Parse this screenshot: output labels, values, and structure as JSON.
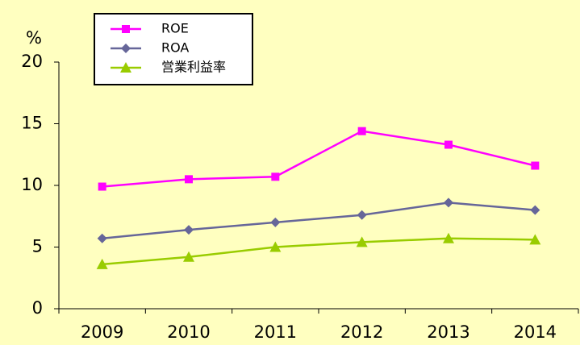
{
  "chart_data": {
    "type": "line",
    "y_label": "%",
    "categories": [
      "2009",
      "2010",
      "2011",
      "2012",
      "2013",
      "2014"
    ],
    "series": [
      {
        "name": "ROE",
        "color": "#ff00ff",
        "marker": "square",
        "values": [
          9.9,
          10.5,
          10.7,
          14.4,
          13.3,
          11.6
        ]
      },
      {
        "name": "ROA",
        "color": "#666699",
        "marker": "diamond",
        "values": [
          5.7,
          6.4,
          7.0,
          7.6,
          8.6,
          8.0
        ]
      },
      {
        "name": "営業利益率",
        "color": "#99cc00",
        "marker": "triangle",
        "values": [
          3.6,
          4.2,
          5.0,
          5.4,
          5.7,
          5.6
        ]
      }
    ],
    "ylim": [
      0,
      20
    ],
    "yticks": [
      0,
      5,
      10,
      15,
      20
    ],
    "grid": false,
    "legend": "top-left"
  }
}
